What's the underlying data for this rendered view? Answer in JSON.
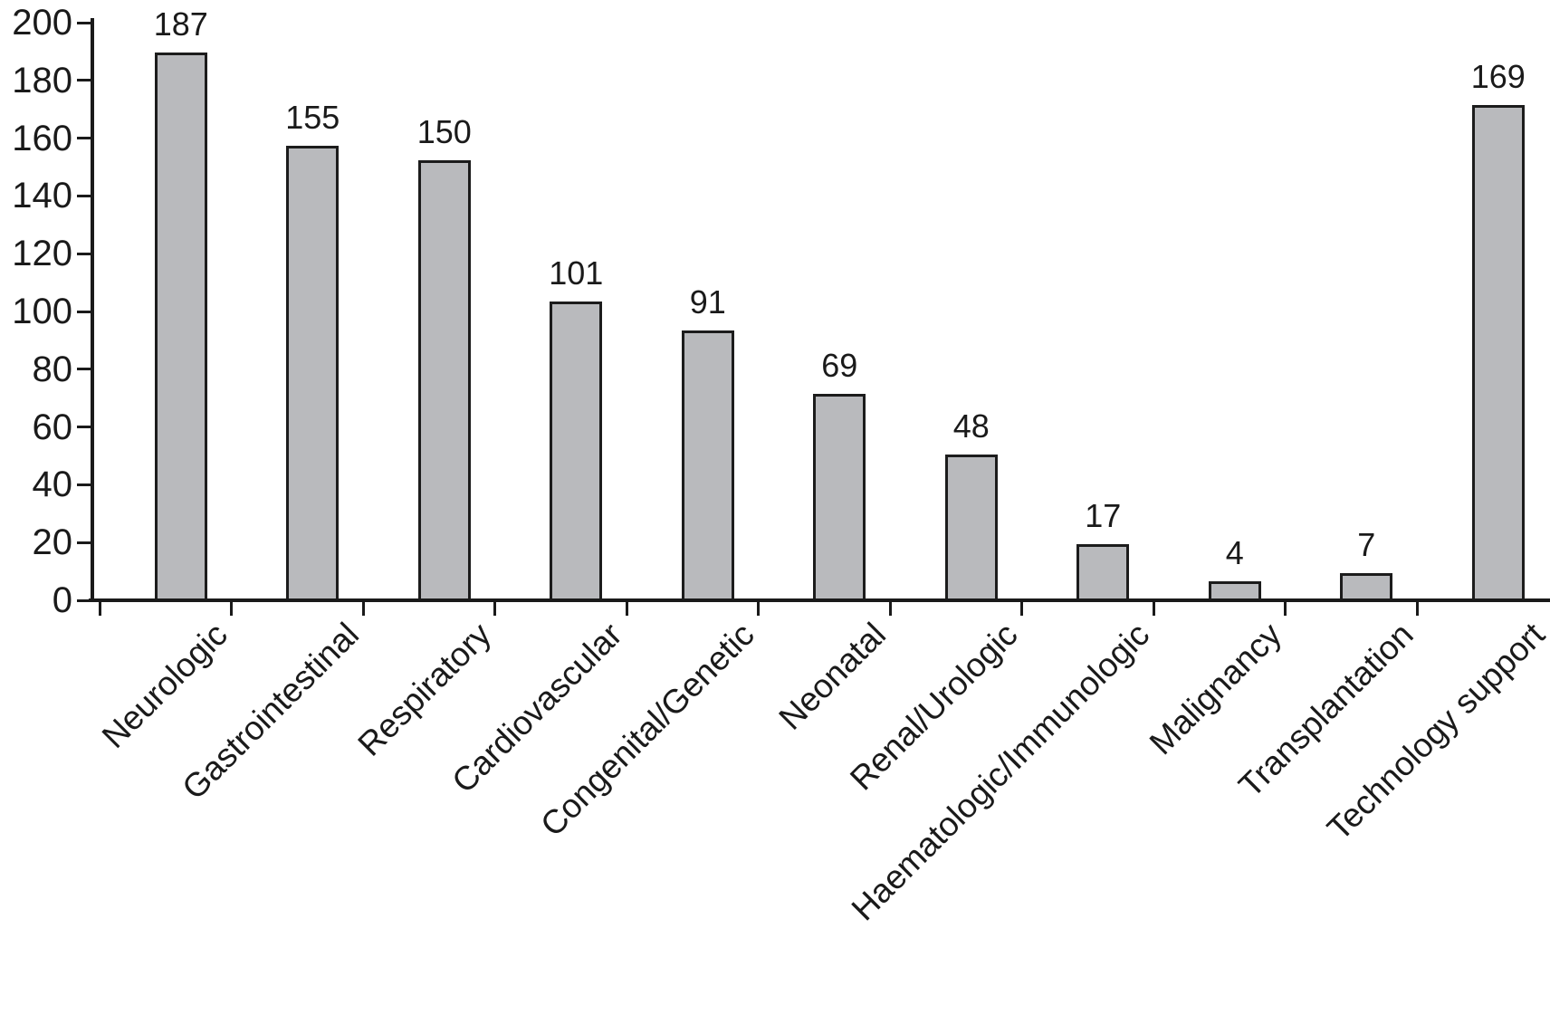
{
  "chart_data": {
    "type": "bar",
    "title": "",
    "xlabel": "",
    "ylabel": "",
    "categories": [
      "Neurologic",
      "Gastrointestinal",
      "Respiratory",
      "Cardiovascular",
      "Congenital/Genetic",
      "Neonatal",
      "Renal/Urologic",
      "Haematologic/Immunologic",
      "Malignancy",
      "Transplantation",
      "Technology support"
    ],
    "values": [
      187,
      155,
      150,
      101,
      91,
      69,
      48,
      17,
      4,
      7,
      169
    ],
    "bar_value_labels": [
      "187",
      "155",
      "150",
      "101",
      "91",
      "69",
      "48",
      "17",
      "4",
      "7",
      "169"
    ],
    "ylim": [
      0,
      200
    ],
    "yticks": [
      0,
      20,
      40,
      60,
      80,
      100,
      120,
      140,
      160,
      180,
      200
    ],
    "grid": false,
    "legend": false,
    "x_label_rotation_deg": -45,
    "colors": {
      "bar_fill": "#b9babd",
      "bar_border": "#1c1c1c",
      "axis": "#1a1a1a",
      "text": "#1a1a1a",
      "background": "#ffffff"
    }
  }
}
